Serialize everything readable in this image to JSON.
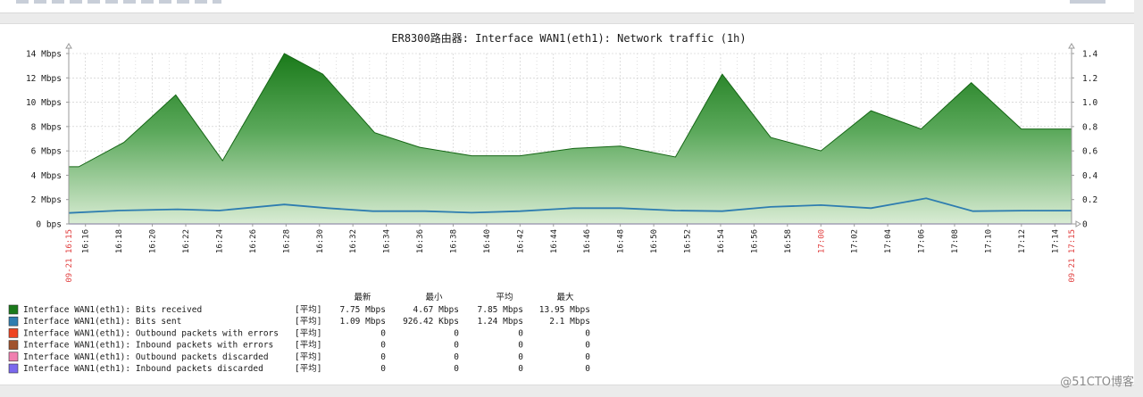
{
  "chart_data": {
    "type": "area",
    "title": "ER8300路由器: Interface WAN1(eth1): Network traffic (1h)",
    "left_axis": {
      "ylim": [
        0,
        14
      ],
      "ticks": [
        0,
        2,
        4,
        6,
        8,
        10,
        12,
        14
      ],
      "tick_labels": [
        "0 bps",
        "2 Mbps",
        "4 Mbps",
        "6 Mbps",
        "8 Mbps",
        "10 Mbps",
        "12 Mbps",
        "14 Mbps"
      ]
    },
    "right_axis": {
      "ylim": [
        0,
        1.4
      ],
      "tick_labels": [
        "0",
        "0.2",
        "0.4",
        "0.6",
        "0.8",
        "1.0",
        "1.2",
        "1.4"
      ]
    },
    "x_axis": {
      "start_label": "09-21 16:15",
      "end_label": "09-21 17:15",
      "ticks": [
        {
          "m": 1,
          "label": "16:16"
        },
        {
          "m": 3,
          "label": "16:18"
        },
        {
          "m": 5,
          "label": "16:20"
        },
        {
          "m": 7,
          "label": "16:22"
        },
        {
          "m": 9,
          "label": "16:24"
        },
        {
          "m": 11,
          "label": "16:26"
        },
        {
          "m": 13,
          "label": "16:28"
        },
        {
          "m": 15,
          "label": "16:30"
        },
        {
          "m": 17,
          "label": "16:32"
        },
        {
          "m": 19,
          "label": "16:34"
        },
        {
          "m": 21,
          "label": "16:36"
        },
        {
          "m": 23,
          "label": "16:38"
        },
        {
          "m": 25,
          "label": "16:40"
        },
        {
          "m": 27,
          "label": "16:42"
        },
        {
          "m": 29,
          "label": "16:44"
        },
        {
          "m": 31,
          "label": "16:46"
        },
        {
          "m": 33,
          "label": "16:48"
        },
        {
          "m": 35,
          "label": "16:50"
        },
        {
          "m": 37,
          "label": "16:52"
        },
        {
          "m": 39,
          "label": "16:54"
        },
        {
          "m": 41,
          "label": "16:56"
        },
        {
          "m": 43,
          "label": "16:58"
        },
        {
          "m": 45,
          "label": "17:00",
          "highlight": true
        },
        {
          "m": 47,
          "label": "17:02"
        },
        {
          "m": 49,
          "label": "17:04"
        },
        {
          "m": 51,
          "label": "17:06"
        },
        {
          "m": 53,
          "label": "17:08"
        },
        {
          "m": 55,
          "label": "17:10"
        },
        {
          "m": 57,
          "label": "17:12"
        },
        {
          "m": 59,
          "label": "17:14"
        }
      ]
    },
    "series": [
      {
        "name": "Interface WAN1(eth1): Bits received",
        "color": "#1a7a1a",
        "points": [
          [
            0,
            4.7
          ],
          [
            0.6,
            4.7
          ],
          [
            3.3,
            6.7
          ],
          [
            6.4,
            10.6
          ],
          [
            9.2,
            5.2
          ],
          [
            12.9,
            14.0
          ],
          [
            15.2,
            12.3
          ],
          [
            18.3,
            7.5
          ],
          [
            21.0,
            6.3
          ],
          [
            24.1,
            5.6
          ],
          [
            27.0,
            5.6
          ],
          [
            30.2,
            6.2
          ],
          [
            33.0,
            6.4
          ],
          [
            36.3,
            5.5
          ],
          [
            39.1,
            12.3
          ],
          [
            42.0,
            7.1
          ],
          [
            45.0,
            6.0
          ],
          [
            48.0,
            9.3
          ],
          [
            51.0,
            7.8
          ],
          [
            54.0,
            11.6
          ],
          [
            57.0,
            7.8
          ],
          [
            60,
            7.8
          ]
        ]
      },
      {
        "name": "Interface WAN1(eth1): Bits sent",
        "color": "#2e7db0",
        "points": [
          [
            0,
            0.9
          ],
          [
            3.0,
            1.1
          ],
          [
            6.5,
            1.2
          ],
          [
            9.0,
            1.1
          ],
          [
            12.9,
            1.6
          ],
          [
            15.5,
            1.3
          ],
          [
            18.2,
            1.05
          ],
          [
            21.3,
            1.05
          ],
          [
            24.1,
            0.92
          ],
          [
            27.0,
            1.05
          ],
          [
            30.2,
            1.3
          ],
          [
            33.0,
            1.3
          ],
          [
            36.3,
            1.1
          ],
          [
            39.1,
            1.05
          ],
          [
            42.0,
            1.4
          ],
          [
            45.0,
            1.55
          ],
          [
            48.0,
            1.3
          ],
          [
            51.3,
            2.1
          ],
          [
            54.1,
            1.05
          ],
          [
            57.0,
            1.09
          ],
          [
            60,
            1.09
          ]
        ]
      }
    ],
    "legend_headers": [
      "最新",
      "最小",
      "平均",
      "最大"
    ],
    "legend": [
      {
        "label": "Interface WAN1(eth1): Bits received",
        "func": "[平均]",
        "last": "7.75 Mbps",
        "min": "4.67 Mbps",
        "avg": "7.85 Mbps",
        "max": "13.95 Mbps",
        "color": "#1a7a1a"
      },
      {
        "label": "Interface WAN1(eth1): Bits sent",
        "func": "[平均]",
        "last": "1.09 Mbps",
        "min": "926.42 Kbps",
        "avg": "1.24 Mbps",
        "max": "2.1 Mbps",
        "color": "#2e7db0"
      },
      {
        "label": "Interface WAN1(eth1): Outbound packets with errors",
        "func": "[平均]",
        "last": "0",
        "min": "0",
        "avg": "0",
        "max": "0",
        "color": "#ee4422"
      },
      {
        "label": "Interface WAN1(eth1): Inbound packets with errors",
        "func": "[平均]",
        "last": "0",
        "min": "0",
        "avg": "0",
        "max": "0",
        "color": "#a0522d"
      },
      {
        "label": "Interface WAN1(eth1): Outbound packets discarded",
        "func": "[平均]",
        "last": "0",
        "min": "0",
        "avg": "0",
        "max": "0",
        "color": "#f080b0"
      },
      {
        "label": "Interface WAN1(eth1): Inbound packets discarded",
        "func": "[平均]",
        "last": "0",
        "min": "0",
        "avg": "0",
        "max": "0",
        "color": "#7b68ee"
      }
    ]
  },
  "watermark": "@51CTO博客",
  "colors": {
    "grid": "#c8c8c8",
    "axis": "#9a9a9a",
    "highlight": "#e03c3c",
    "text": "#1a1a1a"
  }
}
